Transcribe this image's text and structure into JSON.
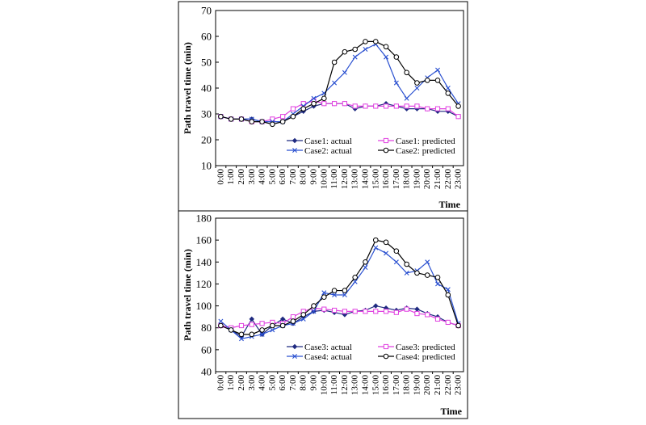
{
  "chart_data": [
    {
      "type": "line",
      "ylabel": "Path travel time (min)",
      "xlabel": "Time",
      "ylim": [
        10,
        70
      ],
      "yticks": [
        10,
        20,
        30,
        40,
        50,
        60,
        70
      ],
      "x": [
        "0:00",
        "1:00",
        "2:00",
        "3:00",
        "4:00",
        "5:00",
        "6:00",
        "7:00",
        "8:00",
        "9:00",
        "10:00",
        "11:00",
        "12:00",
        "13:00",
        "14:00",
        "15:00",
        "16:00",
        "17:00",
        "18:00",
        "19:00",
        "20:00",
        "21:00",
        "22:00",
        "23:00"
      ],
      "grid": false,
      "legend_position": "bottom-right",
      "series": [
        {
          "name": "Case1: actual",
          "color": "#1f2a80",
          "marker": "diamond",
          "values": [
            29,
            28,
            28,
            28,
            27,
            27,
            27,
            29,
            31,
            33,
            34,
            34,
            34,
            32,
            33,
            33,
            34,
            33,
            32,
            32,
            32,
            31,
            31,
            29
          ]
        },
        {
          "name": "Case1: predicted",
          "color": "#e040e0",
          "marker": "square",
          "values": [
            29,
            28,
            28,
            27,
            27,
            28,
            29,
            32,
            34,
            35,
            34,
            34,
            34,
            33,
            33,
            33,
            33,
            33,
            33,
            33,
            32,
            32,
            32,
            29
          ]
        },
        {
          "name": "Case2: actual",
          "color": "#2a50d0",
          "marker": "x",
          "values": [
            29,
            28,
            28,
            28,
            27,
            27,
            27,
            30,
            33,
            36,
            38,
            42,
            46,
            52,
            55,
            57,
            52,
            42,
            36,
            40,
            44,
            47,
            40,
            34
          ]
        },
        {
          "name": "Case2: predicted",
          "color": "#000000",
          "marker": "circle",
          "values": [
            29,
            28,
            28,
            27,
            27,
            26,
            27,
            29,
            32,
            34,
            36,
            50,
            54,
            55,
            58,
            58,
            56,
            52,
            46,
            42,
            43,
            43,
            38,
            33
          ]
        }
      ]
    },
    {
      "type": "line",
      "ylabel": "Path travel time (min)",
      "xlabel": "Time",
      "ylim": [
        40,
        180
      ],
      "yticks": [
        40,
        60,
        80,
        100,
        120,
        140,
        160,
        180
      ],
      "x": [
        "0:00",
        "1:00",
        "2:00",
        "3:00",
        "4:00",
        "5:00",
        "6:00",
        "7:00",
        "8:00",
        "9:00",
        "10:00",
        "11:00",
        "12:00",
        "13:00",
        "14:00",
        "15:00",
        "16:00",
        "17:00",
        "18:00",
        "19:00",
        "20:00",
        "21:00",
        "22:00",
        "23:00"
      ],
      "grid": false,
      "legend_position": "bottom-right",
      "series": [
        {
          "name": "Case3: actual",
          "color": "#1f2a80",
          "marker": "diamond",
          "values": [
            82,
            78,
            72,
            88,
            74,
            82,
            88,
            84,
            90,
            95,
            96,
            94,
            92,
            95,
            96,
            100,
            98,
            96,
            98,
            97,
            93,
            90,
            85,
            82
          ]
        },
        {
          "name": "Case3: predicted",
          "color": "#e040e0",
          "marker": "square",
          "values": [
            82,
            80,
            82,
            83,
            84,
            85,
            84,
            90,
            95,
            98,
            97,
            96,
            95,
            95,
            95,
            95,
            95,
            94,
            97,
            93,
            92,
            88,
            85,
            82
          ]
        },
        {
          "name": "Case4: actual",
          "color": "#2a50d0",
          "marker": "x",
          "values": [
            86,
            78,
            70,
            72,
            74,
            78,
            82,
            84,
            88,
            95,
            112,
            110,
            110,
            122,
            135,
            153,
            148,
            140,
            130,
            132,
            140,
            120,
            115,
            84
          ]
        },
        {
          "name": "Case4: predicted",
          "color": "#000000",
          "marker": "circle",
          "values": [
            82,
            78,
            74,
            74,
            78,
            82,
            82,
            86,
            92,
            100,
            108,
            114,
            114,
            126,
            140,
            160,
            158,
            150,
            138,
            130,
            128,
            126,
            110,
            82
          ]
        }
      ]
    }
  ]
}
